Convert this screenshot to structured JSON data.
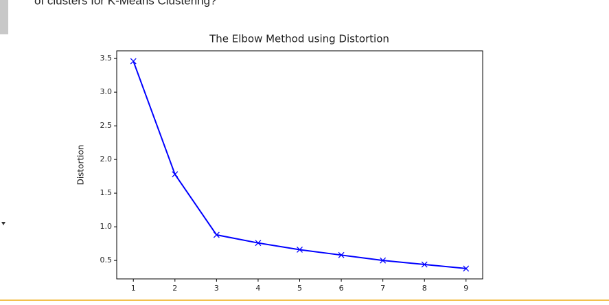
{
  "page_text": "of clusters for K-Means Clustering?",
  "chart_data": {
    "type": "line",
    "title": "The Elbow Method using Distortion",
    "y_label": "Distortion",
    "x": [
      1,
      2,
      3,
      4,
      5,
      6,
      7,
      8,
      9
    ],
    "series": [
      {
        "name": "Distortion",
        "color": "#0000ff",
        "marker": "x",
        "values": [
          3.46,
          1.78,
          0.88,
          0.76,
          0.66,
          0.58,
          0.5,
          0.44,
          0.38
        ]
      }
    ],
    "xlim": [
      0.6,
      9.4
    ],
    "xticks": [
      1,
      2,
      3,
      4,
      5,
      6,
      7,
      8,
      9
    ],
    "ylim": [
      0.226,
      3.614
    ],
    "yticks": [
      0.5,
      {
        "value": 1.0,
        "label": "1.0"
      },
      1.5,
      {
        "value": 2.0,
        "label": "2.0"
      },
      2.5,
      {
        "value": 3.0,
        "label": "3.0"
      },
      3.5
    ],
    "grid": false
  }
}
